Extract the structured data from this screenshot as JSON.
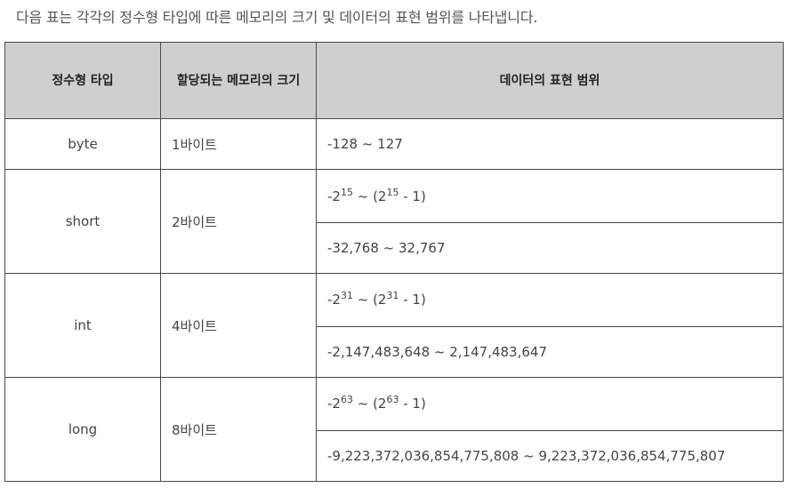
{
  "intro": "다음 표는 각각의 정수형 타입에 따른 메모리의 크기 및 데이터의 표현 범위를 나타냅니다.",
  "headers": {
    "type": "정수형 타입",
    "size": "할당되는 메모리의 크기",
    "range": "데이터의 표현 범위"
  },
  "rows": [
    {
      "type": "byte",
      "size": "1바이트",
      "range": "-128 ~ 127"
    },
    {
      "type": "short",
      "size": "2바이트",
      "power_prefix": "-2",
      "exp1": "15",
      "power_mid": " ~ (2",
      "exp2": "15",
      "power_suffix": " - 1)",
      "range": "-32,768 ~ 32,767"
    },
    {
      "type": "int",
      "size": "4바이트",
      "power_prefix": "-2",
      "exp1": "31",
      "power_mid": " ~ (2",
      "exp2": "31",
      "power_suffix": " - 1)",
      "range": "-2,147,483,648 ~ 2,147,483,647"
    },
    {
      "type": "long",
      "size": "8바이트",
      "power_prefix": "-2",
      "exp1": "63",
      "power_mid": " ~ (2",
      "exp2": "63",
      "power_suffix": " - 1)",
      "range": "-9,223,372,036,854,775,808 ~ 9,223,372,036,854,775,807"
    }
  ]
}
